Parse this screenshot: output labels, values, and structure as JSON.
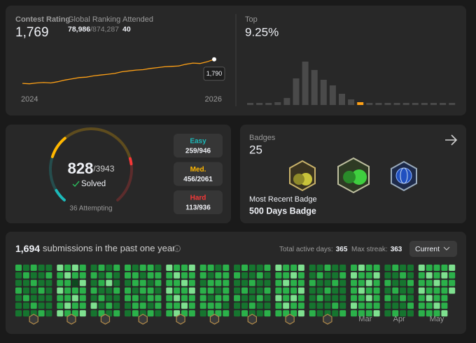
{
  "rating": {
    "label": "Contest Rating",
    "value": "1,769",
    "ranking_label": "Global Ranking",
    "ranking": "78,986",
    "ranking_total": "/874,287",
    "attended_label": "Attended",
    "attended": "40",
    "values": [
      1500,
      1495,
      1505,
      1510,
      1505,
      1520,
      1540,
      1555,
      1570,
      1575,
      1590,
      1600,
      1610,
      1620,
      1640,
      1650,
      1660,
      1665,
      1680,
      1690,
      1700,
      1705,
      1710,
      1730,
      1745,
      1740,
      1760,
      1790
    ],
    "ylim": [
      1450,
      1830
    ],
    "x_labels": [
      "2024",
      "2026"
    ],
    "tooltip": "1,790",
    "color": "#ffa116"
  },
  "top": {
    "label": "Top",
    "value": "9.25%",
    "bars": [
      3,
      3,
      3,
      4,
      10,
      38,
      62,
      50,
      36,
      28,
      16,
      8,
      4,
      3,
      3,
      3,
      3,
      3,
      3,
      3,
      3,
      3,
      3
    ],
    "ylim": [
      0,
      62
    ],
    "color": "#4a4a4a",
    "highlight": 12,
    "highlight_color": "#ffa116"
  },
  "solved": {
    "solved": 828,
    "total_label": "/3943",
    "solved_label": "Solved",
    "attempting_label": "36 Attempting",
    "difficulties": [
      {
        "name": "Easy",
        "solved": 259,
        "total": 946,
        "value_label": "259/946",
        "color": "#1cbaba"
      },
      {
        "name": "Med.",
        "solved": 456,
        "total": 2061,
        "value_label": "456/2061",
        "color": "#ffb700"
      },
      {
        "name": "Hard",
        "solved": 113,
        "total": 936,
        "value_label": "113/936",
        "color": "#f63737"
      }
    ]
  },
  "badges": {
    "label": "Badges",
    "count": "25",
    "recent_label": "Most Recent Badge",
    "recent": "500 Days Badge"
  },
  "submissions": {
    "count": "1,694",
    "text": "submissions in the past one year",
    "active_label": "Total active days:",
    "active": "365",
    "streak_label": "Max streak:",
    "streak": "363",
    "dropdown": "Current",
    "level_colors": [
      "#393939",
      "#0e4a1f",
      "#16752f",
      "#2bb14a",
      "#7ee08f"
    ],
    "months": [
      {
        "label": null,
        "weeks": [
          [
            3,
            2,
            2,
            3,
            2,
            2,
            2
          ],
          [
            2,
            3,
            2,
            2,
            3,
            2,
            2
          ],
          [
            3,
            2,
            3,
            2,
            2,
            3,
            2
          ],
          [
            2,
            2,
            2,
            3,
            2,
            2,
            3
          ],
          [
            2,
            3,
            2,
            2,
            2,
            2,
            2
          ]
        ]
      },
      {
        "label": null,
        "weeks": [
          [
            4,
            3,
            3,
            4,
            3,
            3,
            4
          ],
          [
            3,
            4,
            3,
            3,
            3,
            4,
            3
          ],
          [
            4,
            3,
            1,
            3,
            4,
            3,
            3
          ],
          [
            3,
            3,
            4,
            3,
            3,
            3,
            4
          ]
        ]
      },
      {
        "label": null,
        "weeks": [
          [
            2,
            3,
            2,
            3,
            2,
            4,
            2
          ],
          [
            3,
            2,
            3,
            2,
            3,
            2,
            3
          ],
          [
            2,
            3,
            4,
            2,
            2,
            3,
            2
          ],
          [
            3,
            2,
            2,
            3,
            2,
            2,
            3
          ]
        ]
      },
      {
        "label": null,
        "weeks": [
          [
            3,
            3,
            2,
            3,
            3,
            2,
            2
          ],
          [
            2,
            3,
            3,
            2,
            3,
            3,
            3
          ],
          [
            3,
            2,
            3,
            3,
            2,
            3,
            2
          ],
          [
            3,
            3,
            2,
            3,
            3,
            2,
            3
          ],
          [
            2,
            3,
            3,
            2,
            3,
            3,
            2
          ]
        ]
      },
      {
        "label": null,
        "weeks": [
          [
            4,
            3,
            3,
            4,
            3,
            3,
            3
          ],
          [
            3,
            4,
            3,
            3,
            4,
            3,
            4
          ],
          [
            3,
            3,
            4,
            3,
            3,
            4,
            3
          ],
          [
            4,
            3,
            3,
            4,
            3,
            3,
            3
          ]
        ]
      },
      {
        "label": null,
        "weeks": [
          [
            3,
            3,
            2,
            3,
            3,
            3,
            2
          ],
          [
            3,
            2,
            3,
            3,
            2,
            3,
            3
          ],
          [
            2,
            3,
            3,
            2,
            3,
            3,
            3
          ],
          [
            3,
            3,
            3,
            3,
            3,
            2,
            3
          ]
        ]
      },
      {
        "label": null,
        "weeks": [
          [
            2,
            3,
            2,
            2,
            3,
            2,
            2
          ],
          [
            3,
            2,
            2,
            3,
            2,
            2,
            3
          ],
          [
            2,
            2,
            3,
            2,
            2,
            3,
            2
          ],
          [
            2,
            3,
            2,
            2,
            3,
            2,
            2
          ],
          [
            3,
            2,
            2,
            3,
            2,
            2,
            3
          ]
        ]
      },
      {
        "label": null,
        "weeks": [
          [
            4,
            3,
            3,
            3,
            4,
            3,
            3
          ],
          [
            3,
            3,
            4,
            3,
            3,
            4,
            3
          ],
          [
            3,
            4,
            3,
            3,
            4,
            3,
            3
          ],
          [
            4,
            3,
            3,
            4,
            3,
            3,
            4
          ]
        ]
      },
      {
        "label": null,
        "weeks": [
          [
            2,
            2,
            3,
            2,
            2,
            2,
            3
          ],
          [
            2,
            3,
            2,
            2,
            3,
            2,
            2
          ],
          [
            3,
            2,
            2,
            3,
            2,
            2,
            2
          ],
          [
            2,
            2,
            3,
            2,
            2,
            3,
            2
          ],
          [
            2,
            3,
            2,
            2,
            2,
            2,
            3
          ]
        ]
      },
      {
        "label": "Mar",
        "weeks": [
          [
            3,
            4,
            3,
            3,
            3,
            4,
            3
          ],
          [
            4,
            3,
            3,
            4,
            3,
            3,
            3
          ],
          [
            3,
            3,
            4,
            3,
            4,
            3,
            3
          ],
          [
            3,
            4,
            3,
            3,
            3,
            3,
            4
          ]
        ]
      },
      {
        "label": "Apr",
        "weeks": [
          [
            2,
            2,
            3,
            2,
            3,
            2,
            2
          ],
          [
            3,
            2,
            2,
            3,
            2,
            2,
            3
          ],
          [
            2,
            3,
            2,
            2,
            3,
            2,
            2
          ],
          [
            2,
            2,
            3,
            2,
            2,
            3,
            2
          ]
        ]
      },
      {
        "label": "May",
        "weeks": [
          [
            4,
            3,
            3,
            4,
            3,
            3,
            3
          ],
          [
            3,
            4,
            3,
            3,
            4,
            3,
            3
          ],
          [
            3,
            3,
            4,
            3,
            3,
            4,
            3
          ],
          [
            3,
            4,
            3,
            3,
            3,
            3,
            4
          ],
          [
            4,
            3,
            3,
            4,
            null,
            null,
            null
          ]
        ]
      }
    ]
  }
}
